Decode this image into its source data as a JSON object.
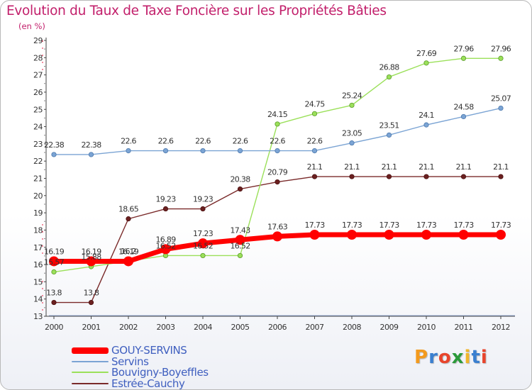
{
  "title": "Evolution du Taux de Taxe Foncière sur les Propriétés Bâties",
  "unit": "(en %)",
  "logo": {
    "text": "Proxiti"
  },
  "chart_data": {
    "type": "line",
    "title": "Evolution du Taux de Taxe Foncière sur les Propriétés Bâties",
    "ylabel": "(en %)",
    "xlabel": "",
    "x": [
      "2000",
      "2001",
      "2002",
      "2003",
      "2004",
      "2005",
      "2006",
      "2007",
      "2008",
      "2009",
      "2010",
      "2011",
      "2012"
    ],
    "ylim": [
      13,
      29
    ],
    "yticks": [
      "13",
      "14",
      "15",
      "16",
      "17",
      "18",
      "19",
      "20",
      "21",
      "22",
      "23",
      "24",
      "25",
      "26",
      "27",
      "28",
      "29"
    ],
    "grid": false,
    "legend_position": "bottom-left",
    "series": [
      {
        "name": "GOUY-SERVINS",
        "color": "#ff0000",
        "marker_fill": "#ff0000",
        "marker_stroke": "#ff0000",
        "values": [
          16.19,
          16.19,
          16.19,
          16.89,
          17.23,
          17.43,
          17.63,
          17.73,
          17.73,
          17.73,
          17.73,
          17.73,
          17.73
        ],
        "labels": [
          "16.19",
          "16.19",
          "16.19",
          "16.89",
          "17.23",
          "17.43",
          "17.63",
          "17.73",
          "17.73",
          "17.73",
          "17.73",
          "17.73",
          "17.73"
        ]
      },
      {
        "name": "Servins",
        "color": "#7ba4d4",
        "marker_fill": "#7ba4d4",
        "marker_stroke": "#4d79ad",
        "values": [
          22.38,
          22.38,
          22.6,
          22.6,
          22.6,
          22.6,
          22.6,
          22.6,
          23.05,
          23.51,
          24.1,
          24.58,
          25.07
        ],
        "labels": [
          "22.38",
          "22.38",
          "22.6",
          "22.6",
          "22.6",
          "22.6",
          "22.6",
          "22.6",
          "23.05",
          "23.51",
          "24.1",
          "24.58",
          "25.07"
        ]
      },
      {
        "name": "Bouvigny-Boyeffles",
        "color": "#9be05a",
        "marker_fill": "#9be05a",
        "marker_stroke": "#5a9a2a",
        "values": [
          15.57,
          15.88,
          16.2,
          16.52,
          16.52,
          16.52,
          24.15,
          24.75,
          25.24,
          26.88,
          27.69,
          27.96,
          27.96
        ],
        "labels": [
          "15.57",
          "15.88",
          "16.2",
          "16.52",
          "16.52",
          "16.52",
          "24.15",
          "24.75",
          "25.24",
          "26.88",
          "27.69",
          "27.96",
          "27.96"
        ]
      },
      {
        "name": "Estrée-Cauchy",
        "color": "#7a2a2a",
        "marker_fill": "#6b2020",
        "marker_stroke": "#4a1010",
        "values": [
          13.8,
          13.8,
          18.65,
          19.23,
          19.23,
          20.38,
          20.79,
          21.1,
          21.1,
          21.1,
          21.1,
          21.1,
          21.1
        ],
        "labels": [
          "13.8",
          "13.8",
          "18.65",
          "19.23",
          "19.23",
          "20.38",
          "20.79",
          "21.1",
          "21.1",
          "21.1",
          "21.1",
          "21.1",
          "21.1"
        ]
      }
    ]
  }
}
